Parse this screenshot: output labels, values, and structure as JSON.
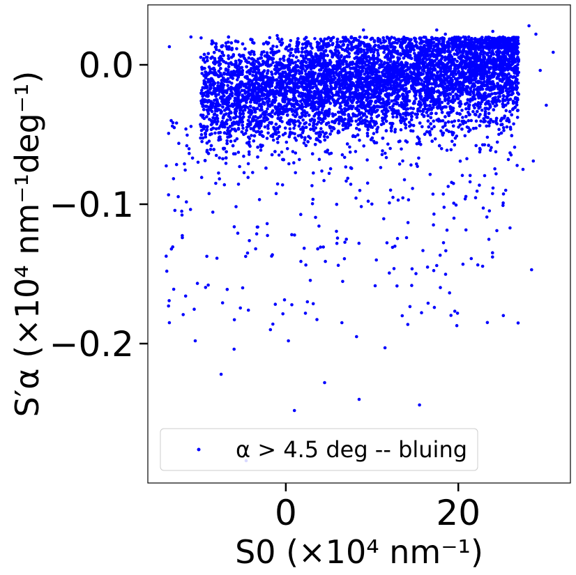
{
  "chart_data": {
    "type": "scatter",
    "xlabel": "S0 (×10⁴ nm⁻¹)",
    "ylabel": "S′α (×10⁴ nm⁻¹deg⁻¹)",
    "xlim": [
      -16,
      33
    ],
    "ylim": [
      -0.3,
      0.043
    ],
    "x_ticks": [
      0,
      20
    ],
    "y_ticks": [
      0.0,
      -0.1,
      -0.2
    ],
    "x_tick_labels": [
      "0",
      "20"
    ],
    "y_tick_labels": [
      "0.0",
      "−0.1",
      "−0.2"
    ],
    "grid": false,
    "legend_position": "lower-left",
    "marker_color": "#0000ff",
    "series": [
      {
        "name": "α > 4.5 deg -- bluing",
        "cluster": {
          "count": 9000,
          "x_range": [
            -14,
            27
          ],
          "y_center_at_x_min": -0.025,
          "y_center_at_x_max": 0.0,
          "y_spread": 0.018
        },
        "points": [
          {
            "x": 28.2,
            "y": 0.028
          },
          {
            "x": 31,
            "y": 0.009
          },
          {
            "x": 29,
            "y": 0.022
          },
          {
            "x": 29.5,
            "y": -0.004
          },
          {
            "x": 30.2,
            "y": -0.029
          },
          {
            "x": 28.7,
            "y": -0.069
          },
          {
            "x": 27.5,
            "y": -0.075
          },
          {
            "x": 28.5,
            "y": -0.147
          },
          {
            "x": 25.5,
            "y": -0.09
          },
          {
            "x": 26,
            "y": -0.117
          },
          {
            "x": 22.5,
            "y": -0.06
          },
          {
            "x": 21.5,
            "y": -0.139
          },
          {
            "x": 17.5,
            "y": -0.144
          },
          {
            "x": 16.5,
            "y": -0.171
          },
          {
            "x": 15.5,
            "y": -0.244
          },
          {
            "x": 13.5,
            "y": -0.18
          },
          {
            "x": 11.5,
            "y": -0.203
          },
          {
            "x": 8.5,
            "y": -0.24
          },
          {
            "x": 8.2,
            "y": -0.195
          },
          {
            "x": 4.5,
            "y": -0.228
          },
          {
            "x": 1,
            "y": -0.248
          },
          {
            "x": 0.3,
            "y": -0.198
          },
          {
            "x": -1.5,
            "y": -0.186
          },
          {
            "x": -7.5,
            "y": -0.222
          },
          {
            "x": -6,
            "y": -0.204
          },
          {
            "x": -10.5,
            "y": -0.198
          },
          {
            "x": -13.5,
            "y": -0.185
          },
          {
            "x": -13.6,
            "y": -0.173
          },
          {
            "x": -13,
            "y": -0.161
          },
          {
            "x": -12,
            "y": -0.124
          },
          {
            "x": -9,
            "y": -0.158
          },
          {
            "x": -5,
            "y": -0.16
          },
          {
            "x": -3.5,
            "y": -0.132
          },
          {
            "x": 2.5,
            "y": -0.17
          },
          {
            "x": 6.5,
            "y": -0.185
          },
          {
            "x": 10.5,
            "y": -0.14
          },
          {
            "x": 14,
            "y": -0.124
          },
          {
            "x": 19.5,
            "y": -0.11
          },
          {
            "x": -11,
            "y": 0.02
          },
          {
            "x": -13.5,
            "y": 0.013
          },
          {
            "x": 9,
            "y": 0.025
          },
          {
            "x": -1,
            "y": 0.021
          },
          {
            "x": 18.5,
            "y": 0.022
          },
          {
            "x": 24,
            "y": 0.024
          },
          {
            "x": 17.5,
            "y": 0.025
          },
          {
            "x": -4.6,
            "y": -0.284
          }
        ],
        "tail": {
          "count": 420,
          "x_range": [
            -14,
            27
          ],
          "y_range": [
            -0.19,
            -0.04
          ]
        }
      }
    ]
  }
}
